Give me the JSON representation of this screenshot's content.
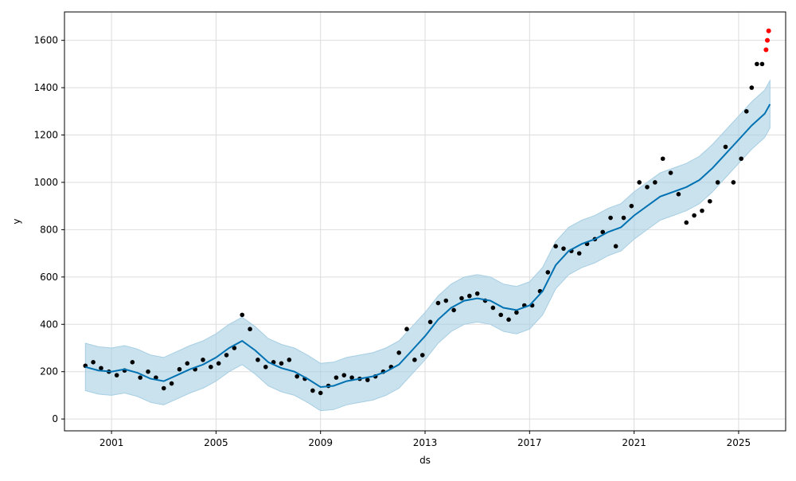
{
  "chart_data": {
    "type": "scatter",
    "title": "",
    "xlabel": "ds",
    "ylabel": "y",
    "xlim": [
      1999.2,
      2026.8
    ],
    "ylim": [
      -50,
      1720
    ],
    "x_ticks": [
      2001,
      2005,
      2009,
      2013,
      2017,
      2021,
      2025
    ],
    "x_tick_labels": [
      "2001",
      "2005",
      "2009",
      "2013",
      "2017",
      "2021",
      "2025"
    ],
    "y_ticks": [
      0,
      200,
      400,
      600,
      800,
      1000,
      1200,
      1400,
      1600
    ],
    "y_tick_labels": [
      "0",
      "200",
      "400",
      "600",
      "800",
      "1000",
      "1200",
      "1400",
      "1600"
    ],
    "grid": true,
    "colors": {
      "observed": "#000000",
      "forecast": "#0072B2",
      "interval": "#a6cee3",
      "outliers": "#ff0000"
    },
    "series": [
      {
        "role": "observed",
        "x": [
          2000.0,
          2000.3,
          2000.6,
          2000.9,
          2001.2,
          2001.5,
          2001.8,
          2002.1,
          2002.4,
          2002.7,
          2003.0,
          2003.3,
          2003.6,
          2003.9,
          2004.2,
          2004.5,
          2004.8,
          2005.1,
          2005.4,
          2005.7,
          2006.0,
          2006.3,
          2006.6,
          2006.9,
          2007.2,
          2007.5,
          2007.8,
          2008.1,
          2008.4,
          2008.7,
          2009.0,
          2009.3,
          2009.6,
          2009.9,
          2010.2,
          2010.5,
          2010.8,
          2011.1,
          2011.4,
          2011.7,
          2012.0,
          2012.3,
          2012.6,
          2012.9,
          2013.2,
          2013.5,
          2013.8,
          2014.1,
          2014.4,
          2014.7,
          2015.0,
          2015.3,
          2015.6,
          2015.9,
          2016.2,
          2016.5,
          2016.8,
          2017.1,
          2017.4,
          2017.7,
          2018.0,
          2018.3,
          2018.6,
          2018.9,
          2019.2,
          2019.5,
          2019.8,
          2020.1,
          2020.3,
          2020.6,
          2020.9,
          2021.2,
          2021.5,
          2021.8,
          2022.1,
          2022.4,
          2022.7,
          2023.0,
          2023.3,
          2023.6,
          2023.9,
          2024.2,
          2024.5,
          2024.8,
          2025.1,
          2025.3,
          2025.5,
          2025.7,
          2025.9
        ],
        "y": [
          225,
          240,
          215,
          200,
          185,
          205,
          240,
          175,
          200,
          175,
          130,
          150,
          210,
          235,
          210,
          250,
          220,
          235,
          270,
          300,
          440,
          380,
          250,
          220,
          240,
          235,
          250,
          180,
          170,
          120,
          110,
          140,
          175,
          185,
          175,
          170,
          165,
          180,
          200,
          220,
          280,
          380,
          250,
          270,
          410,
          490,
          500,
          460,
          510,
          520,
          530,
          500,
          470,
          440,
          420,
          450,
          480,
          480,
          540,
          620,
          730,
          720,
          710,
          700,
          740,
          760,
          790,
          850,
          730,
          850,
          900,
          1000,
          980,
          1000,
          1100,
          1040,
          950,
          830,
          860,
          880,
          920,
          1000,
          1150,
          1000,
          1100,
          1300,
          1400,
          1500,
          1500
        ]
      },
      {
        "role": "outliers",
        "x": [
          2026.05,
          2026.1,
          2026.15
        ],
        "y": [
          1560,
          1600,
          1640
        ]
      },
      {
        "role": "forecast",
        "x": [
          2000.0,
          2000.5,
          2001.0,
          2001.5,
          2002.0,
          2002.5,
          2003.0,
          2003.5,
          2004.0,
          2004.5,
          2005.0,
          2005.5,
          2006.0,
          2006.5,
          2007.0,
          2007.5,
          2008.0,
          2008.5,
          2009.0,
          2009.5,
          2010.0,
          2010.5,
          2011.0,
          2011.5,
          2012.0,
          2012.5,
          2013.0,
          2013.5,
          2014.0,
          2014.5,
          2015.0,
          2015.5,
          2016.0,
          2016.5,
          2017.0,
          2017.5,
          2018.0,
          2018.5,
          2019.0,
          2019.5,
          2020.0,
          2020.5,
          2021.0,
          2021.5,
          2022.0,
          2022.5,
          2023.0,
          2023.5,
          2024.0,
          2024.5,
          2025.0,
          2025.5,
          2026.0,
          2026.2
        ],
        "y": [
          220,
          205,
          200,
          210,
          195,
          170,
          160,
          185,
          210,
          230,
          260,
          300,
          330,
          290,
          240,
          215,
          200,
          170,
          135,
          140,
          160,
          170,
          180,
          200,
          230,
          290,
          350,
          420,
          470,
          500,
          510,
          500,
          470,
          460,
          480,
          540,
          650,
          710,
          740,
          760,
          790,
          810,
          860,
          900,
          940,
          960,
          980,
          1010,
          1060,
          1120,
          1180,
          1240,
          1290,
          1330
        ]
      }
    ],
    "band": {
      "half_width": 100
    }
  }
}
